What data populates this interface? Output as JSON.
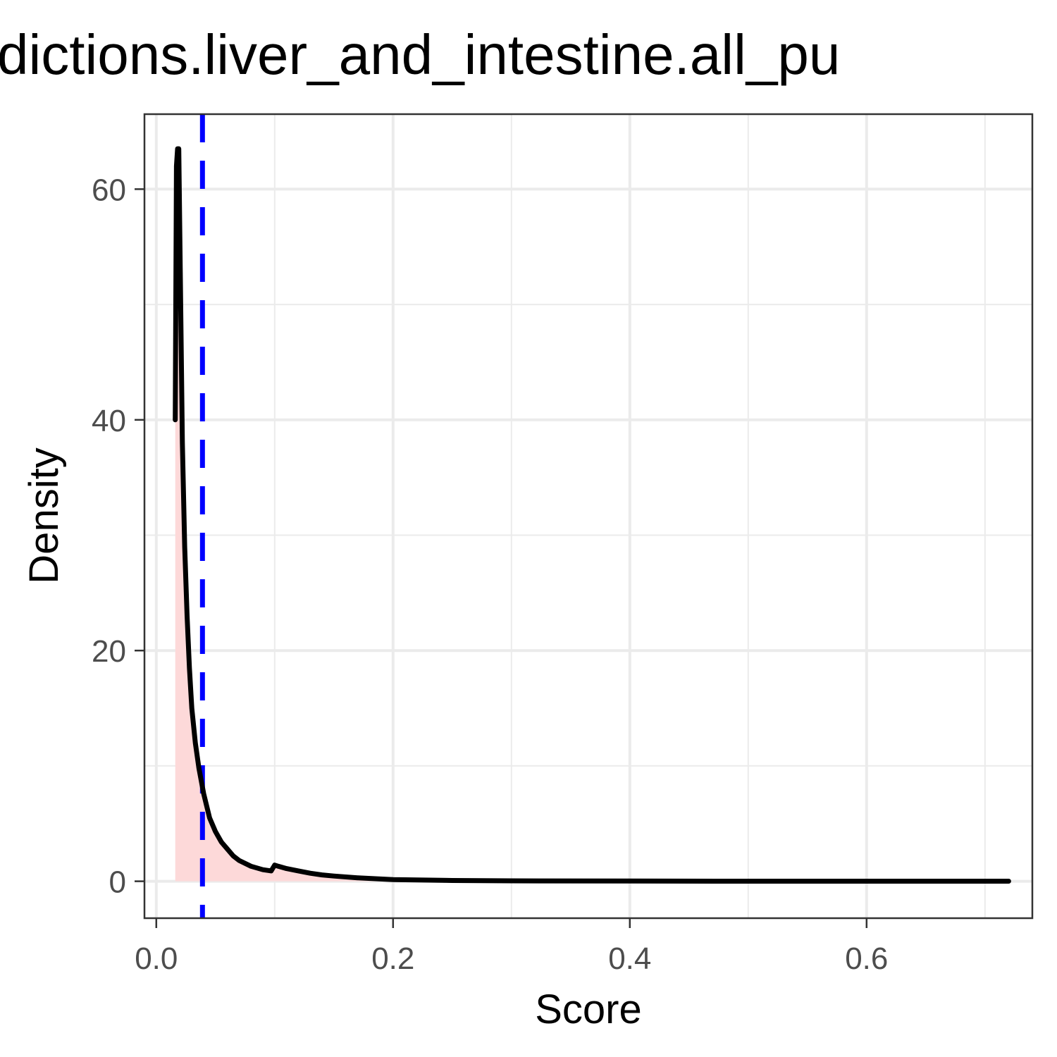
{
  "chart_data": {
    "type": "area",
    "title": "dictions.liver_and_intestine.all_pu",
    "xlabel": "Score",
    "ylabel": "Density",
    "xlim": [
      -0.01,
      0.74
    ],
    "ylim": [
      -3.2,
      66.5
    ],
    "x_ticks": [
      0.0,
      0.2,
      0.4,
      0.6
    ],
    "x_tick_labels": [
      "0.0",
      "0.2",
      "0.4",
      "0.6"
    ],
    "x_minor_ticks": [
      0.1,
      0.3,
      0.5,
      0.7
    ],
    "y_ticks": [
      0,
      20,
      40,
      60
    ],
    "y_tick_labels": [
      "0",
      "20",
      "40",
      "60"
    ],
    "y_minor_ticks": [
      10,
      30,
      50
    ],
    "grid": true,
    "legend": "none",
    "series": [
      {
        "values_x": [
          0.016,
          0.017,
          0.018,
          0.019,
          0.02,
          0.022,
          0.024,
          0.026,
          0.028,
          0.03,
          0.033,
          0.036,
          0.04,
          0.045,
          0.05,
          0.055,
          0.06,
          0.065,
          0.07,
          0.08,
          0.09,
          0.097,
          0.1,
          0.103,
          0.11,
          0.12,
          0.13,
          0.14,
          0.15,
          0.17,
          0.2,
          0.25,
          0.3,
          0.4,
          0.5,
          0.6,
          0.7,
          0.72
        ],
        "values_y": [
          40,
          62,
          63.5,
          63.5,
          55,
          38,
          29,
          23,
          18.5,
          15,
          12,
          9.8,
          7.6,
          5.5,
          4.3,
          3.4,
          2.8,
          2.2,
          1.8,
          1.3,
          1.0,
          0.9,
          1.4,
          1.3,
          1.1,
          0.9,
          0.7,
          0.55,
          0.45,
          0.3,
          0.15,
          0.07,
          0.04,
          0.02,
          0.01,
          0.01,
          0.01,
          0.01
        ]
      }
    ],
    "vline": {
      "x": 0.039,
      "style": "dashed"
    },
    "colors": {
      "curve": "#000000",
      "fill": "#fdd9d9",
      "vline": "#0000ff",
      "grid": "#ebebeb",
      "panel_border": "#333333",
      "tick_label": "#4d4d4d"
    }
  }
}
